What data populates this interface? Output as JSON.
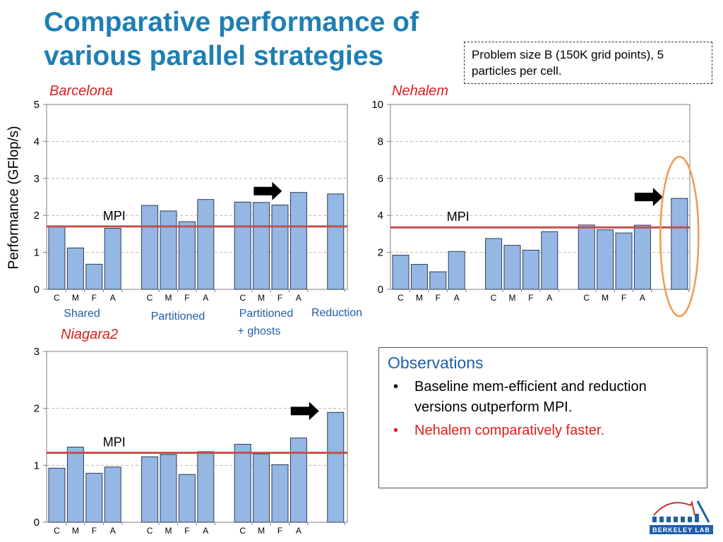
{
  "title": "Comparative performance of various parallel strategies",
  "infobox": "Problem size B (150K grid points), 5 particles per cell.",
  "ylabel": "Performance (GFlop/s)",
  "group_labels": {
    "shared": "Shared",
    "partitioned": "Partitioned",
    "ghosts_line1": "Partitioned",
    "ghosts_line2": "+ ghosts",
    "reduction": "Reduction"
  },
  "observations": {
    "title": "Observations",
    "items": [
      {
        "text": "Baseline mem-efficient and reduction versions outperform MPI.",
        "color": "#000000"
      },
      {
        "text": "Nehalem comparatively faster.",
        "color": "#e01d1d"
      }
    ]
  },
  "logo_text": "BERKELEY LAB",
  "colors": {
    "bar_fill": "#94b7e3",
    "bar_stroke": "#2c3b55",
    "mpi_line": "#c0504d",
    "chart_name": "#d81e1e",
    "title": "#1f7fb3",
    "ellipse": "#f09a4f"
  },
  "chart_data": [
    {
      "type": "bar",
      "title": "Barcelona",
      "categories": [
        "C",
        "M",
        "F",
        "A",
        "C",
        "M",
        "F",
        "A",
        "C",
        "M",
        "F",
        "A",
        ""
      ],
      "values": [
        1.7,
        1.12,
        0.68,
        1.65,
        2.27,
        2.12,
        1.83,
        2.43,
        2.36,
        2.35,
        2.28,
        2.62,
        2.58
      ],
      "ylim": [
        0,
        5
      ],
      "yticks": [
        0,
        1,
        2,
        3,
        4,
        5
      ],
      "reference_line": {
        "label": "MPI",
        "value": 1.7
      },
      "highlight_index": 11
    },
    {
      "type": "bar",
      "title": "Nehalem",
      "categories": [
        "C",
        "M",
        "F",
        "A",
        "C",
        "M",
        "F",
        "A",
        "C",
        "M",
        "F",
        "A",
        ""
      ],
      "values": [
        1.85,
        1.35,
        0.95,
        2.05,
        2.75,
        2.38,
        2.12,
        3.12,
        3.48,
        3.22,
        3.05,
        3.47,
        4.92
      ],
      "ylim": [
        0,
        10
      ],
      "yticks": [
        0,
        2,
        4,
        6,
        8,
        10
      ],
      "reference_line": {
        "label": "MPI",
        "value": 3.35
      },
      "highlight_index": 12
    },
    {
      "type": "bar",
      "title": "Niagara2",
      "categories": [
        "C",
        "M",
        "F",
        "A",
        "C",
        "M",
        "F",
        "A",
        "C",
        "M",
        "F",
        "A",
        ""
      ],
      "values": [
        0.95,
        1.32,
        0.86,
        0.97,
        1.15,
        1.19,
        0.84,
        1.24,
        1.37,
        1.2,
        1.01,
        1.48,
        1.93
      ],
      "ylim": [
        0,
        3
      ],
      "yticks": [
        0,
        1,
        2,
        3
      ],
      "reference_line": {
        "label": "MPI",
        "value": 1.22
      },
      "highlight_index": 12
    }
  ]
}
